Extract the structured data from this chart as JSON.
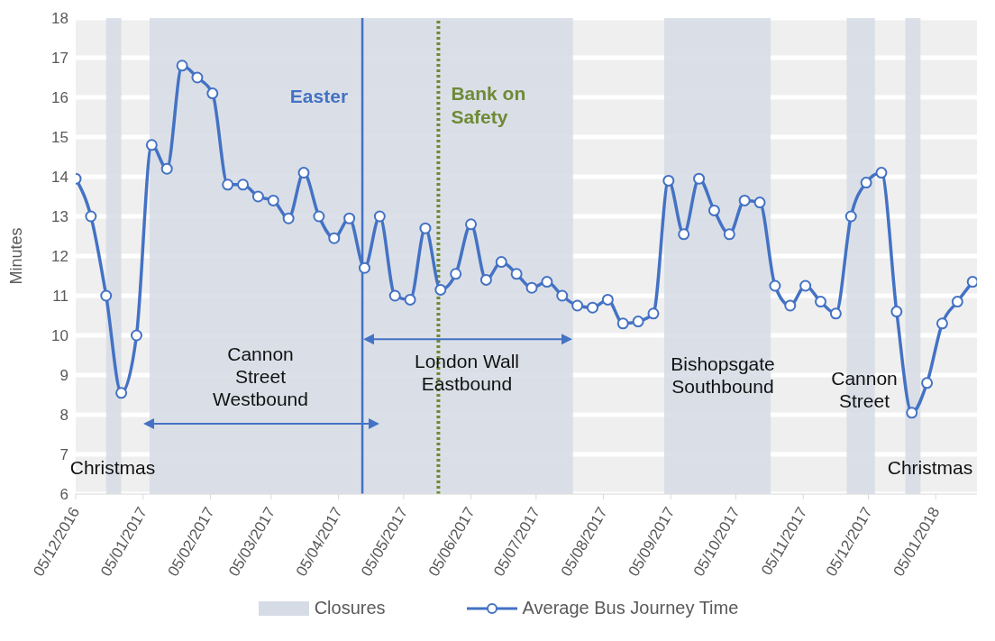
{
  "chart_data": {
    "type": "line",
    "ylabel": "Minutes",
    "x": [
      "2016-12-05",
      "2016-12-12",
      "2016-12-19",
      "2016-12-26",
      "2017-01-02",
      "2017-01-09",
      "2017-01-16",
      "2017-01-23",
      "2017-01-30",
      "2017-02-06",
      "2017-02-13",
      "2017-02-20",
      "2017-02-27",
      "2017-03-06",
      "2017-03-13",
      "2017-03-20",
      "2017-03-27",
      "2017-04-03",
      "2017-04-10",
      "2017-04-17",
      "2017-04-24",
      "2017-05-01",
      "2017-05-08",
      "2017-05-15",
      "2017-05-22",
      "2017-05-29",
      "2017-06-05",
      "2017-06-12",
      "2017-06-19",
      "2017-06-26",
      "2017-07-03",
      "2017-07-10",
      "2017-07-17",
      "2017-07-24",
      "2017-07-31",
      "2017-08-07",
      "2017-08-14",
      "2017-08-21",
      "2017-08-28",
      "2017-09-04",
      "2017-09-11",
      "2017-09-18",
      "2017-09-25",
      "2017-10-02",
      "2017-10-09",
      "2017-10-16",
      "2017-10-23",
      "2017-10-30",
      "2017-11-06",
      "2017-11-13",
      "2017-11-20",
      "2017-11-27",
      "2017-12-04",
      "2017-12-11",
      "2017-12-18",
      "2017-12-25",
      "2018-01-01",
      "2018-01-08",
      "2018-01-15",
      "2018-01-22"
    ],
    "series": [
      {
        "name": "Average Bus Journey Time",
        "color": "#4472c4",
        "values": [
          13.95,
          13.0,
          11.0,
          8.55,
          10.0,
          14.8,
          14.2,
          16.8,
          16.5,
          16.1,
          13.8,
          13.8,
          13.5,
          13.4,
          12.95,
          14.1,
          13.0,
          12.45,
          12.95,
          11.7,
          13.0,
          11.0,
          10.9,
          12.7,
          11.15,
          11.55,
          12.8,
          11.4,
          11.85,
          11.55,
          11.2,
          11.35,
          11.0,
          10.75,
          10.7,
          10.9,
          10.3,
          10.35,
          10.55,
          13.9,
          12.55,
          13.95,
          13.15,
          12.55,
          13.4,
          13.35,
          11.25,
          10.75,
          11.25,
          10.85,
          10.55,
          13.0,
          13.85,
          14.1,
          10.6,
          8.05,
          8.8,
          10.3,
          10.85,
          11.35
        ]
      }
    ],
    "xlim": [
      "2016-12-05",
      "2018-01-24"
    ],
    "xticks": [
      {
        "value": "2016-12-05",
        "label": "05/12/2016"
      },
      {
        "value": "2017-01-05",
        "label": "05/01/2017"
      },
      {
        "value": "2017-02-05",
        "label": "05/02/2017"
      },
      {
        "value": "2017-03-05",
        "label": "05/03/2017"
      },
      {
        "value": "2017-04-05",
        "label": "05/04/2017"
      },
      {
        "value": "2017-05-05",
        "label": "05/05/2017"
      },
      {
        "value": "2017-06-05",
        "label": "05/06/2017"
      },
      {
        "value": "2017-07-05",
        "label": "05/07/2017"
      },
      {
        "value": "2017-08-05",
        "label": "05/08/2017"
      },
      {
        "value": "2017-09-05",
        "label": "05/09/2017"
      },
      {
        "value": "2017-10-05",
        "label": "05/10/2017"
      },
      {
        "value": "2017-11-05",
        "label": "05/11/2017"
      },
      {
        "value": "2017-12-05",
        "label": "05/12/2017"
      },
      {
        "value": "2018-01-05",
        "label": "05/01/2018"
      }
    ],
    "ylim": [
      6,
      18
    ],
    "yticks": [
      6,
      7,
      8,
      9,
      10,
      11,
      12,
      13,
      14,
      15,
      16,
      17,
      18
    ],
    "grid": "y",
    "marker": "circle",
    "line_style": "solid",
    "legend": "bottom",
    "bands": [
      {
        "axis": "x",
        "from": "2016-12-19",
        "to": "2016-12-26",
        "label": "Closures",
        "color": "#d6dce5"
      },
      {
        "axis": "x",
        "from": "2017-01-08",
        "to": "2017-07-22",
        "color": "#d6dce5"
      },
      {
        "axis": "x",
        "from": "2017-09-02",
        "to": "2017-10-21",
        "color": "#d6dce5"
      },
      {
        "axis": "x",
        "from": "2017-11-25",
        "to": "2017-12-08",
        "color": "#d6dce5"
      },
      {
        "axis": "x",
        "from": "2017-12-22",
        "to": "2017-12-29",
        "color": "#d6dce5"
      }
    ],
    "ref_lines": [
      {
        "axis": "x",
        "value": "2017-04-16",
        "label": "Easter",
        "color": "#4472c4",
        "line_style": "solid"
      },
      {
        "axis": "x",
        "value": "2017-05-21",
        "label": "Bank on\nSafety",
        "color": "#6f8a36",
        "line_style": "dotted"
      }
    ],
    "annotations": [
      "Christmas",
      "Cannon\nStreet\nWestbound",
      "London Wall\nEastbound",
      "Bishopsgate\nSouthbound",
      "Cannon\nStreet",
      "Christmas"
    ]
  }
}
